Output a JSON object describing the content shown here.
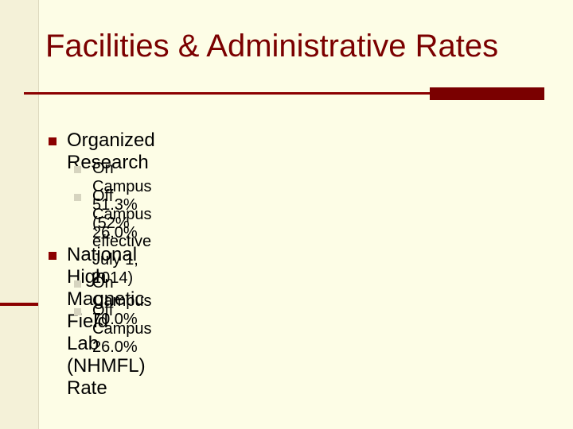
{
  "slide": {
    "title": "Facilities & Administrative Rates",
    "sections": [
      {
        "heading": "Organized Research",
        "items": [
          "On Campus 51.3% (52% effective July 1, 2014)",
          "Off Campus 26.0%"
        ]
      },
      {
        "heading": "National High Magnetic Field Lab (NHMFL) Rate",
        "items": [
          "On Campus 70.0%",
          "Off Campus 26.0%"
        ]
      }
    ]
  },
  "colors": {
    "background": "#fdfde6",
    "accent": "#7b0000",
    "sub_bullet": "#d6d4bf"
  }
}
